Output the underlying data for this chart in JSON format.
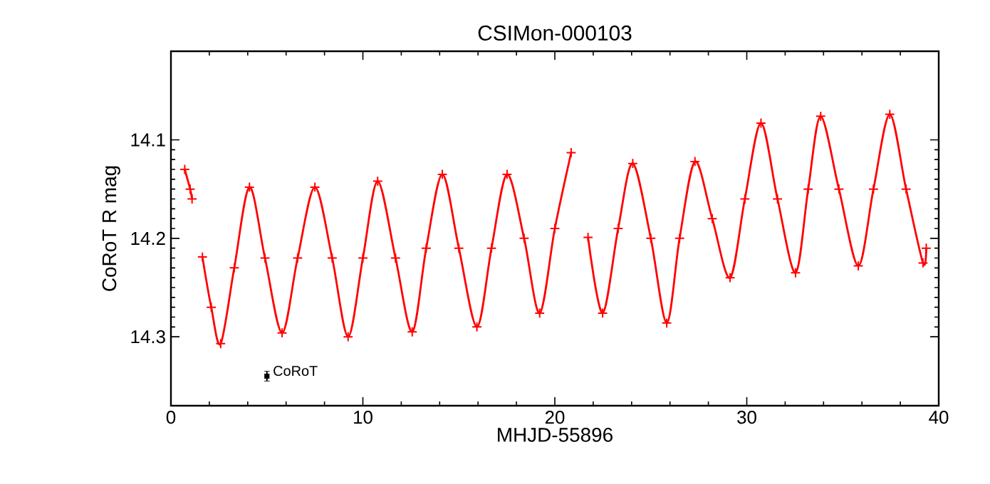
{
  "chart_data": {
    "type": "line",
    "title": "CSIMon-000103",
    "xlabel": "MHJD-55896",
    "ylabel": "CoRoT R mag",
    "xlim": [
      0,
      40
    ],
    "xticks": [
      0,
      10,
      20,
      30,
      40
    ],
    "ylim": [
      14.37,
      14.01
    ],
    "yticks": [
      14.1,
      14.2,
      14.3
    ],
    "marker": "cross",
    "annotations": [
      {
        "text": "CoRoT",
        "x": 5,
        "y": 14.34
      }
    ],
    "series": [
      {
        "color": "#ff0000",
        "x": [
          0.72,
          1.0,
          1.1,
          1.4,
          1.64,
          2.1,
          2.59,
          3.3,
          4.09,
          4.9,
          5.79,
          6.6,
          7.5,
          8.4,
          9.23,
          10.0,
          10.77,
          11.7,
          12.57,
          13.3,
          14.14,
          15.0,
          15.94,
          16.7,
          17.51,
          18.4,
          19.21,
          20.0,
          20.85,
          21.3,
          21.73,
          22.49,
          23.3,
          24.06,
          25.0,
          25.83,
          26.5,
          27.3,
          28.2,
          29.13,
          29.9,
          30.74,
          31.6,
          32.54,
          33.2,
          33.85,
          34.8,
          35.81,
          36.6,
          37.45,
          38.3,
          39.18,
          39.35
        ],
        "values": [
          14.13,
          14.15,
          14.16,
          null,
          14.219,
          14.27,
          14.307,
          14.23,
          14.148,
          14.22,
          14.296,
          14.22,
          14.148,
          14.22,
          14.3,
          14.22,
          14.142,
          14.22,
          14.295,
          14.21,
          14.135,
          14.21,
          14.29,
          14.21,
          14.135,
          14.2,
          14.276,
          14.19,
          14.113,
          null,
          14.199,
          14.276,
          14.19,
          14.124,
          14.2,
          14.286,
          14.2,
          14.122,
          14.18,
          14.24,
          14.16,
          14.083,
          14.16,
          14.235,
          14.15,
          14.076,
          14.15,
          14.228,
          14.15,
          14.074,
          14.15,
          14.225,
          14.21
        ]
      },
      {
        "type": "scatter",
        "color": "#000000",
        "marker": "square",
        "x": [
          5
        ],
        "values": [
          14.34
        ],
        "errors": [
          0.005
        ]
      }
    ]
  }
}
